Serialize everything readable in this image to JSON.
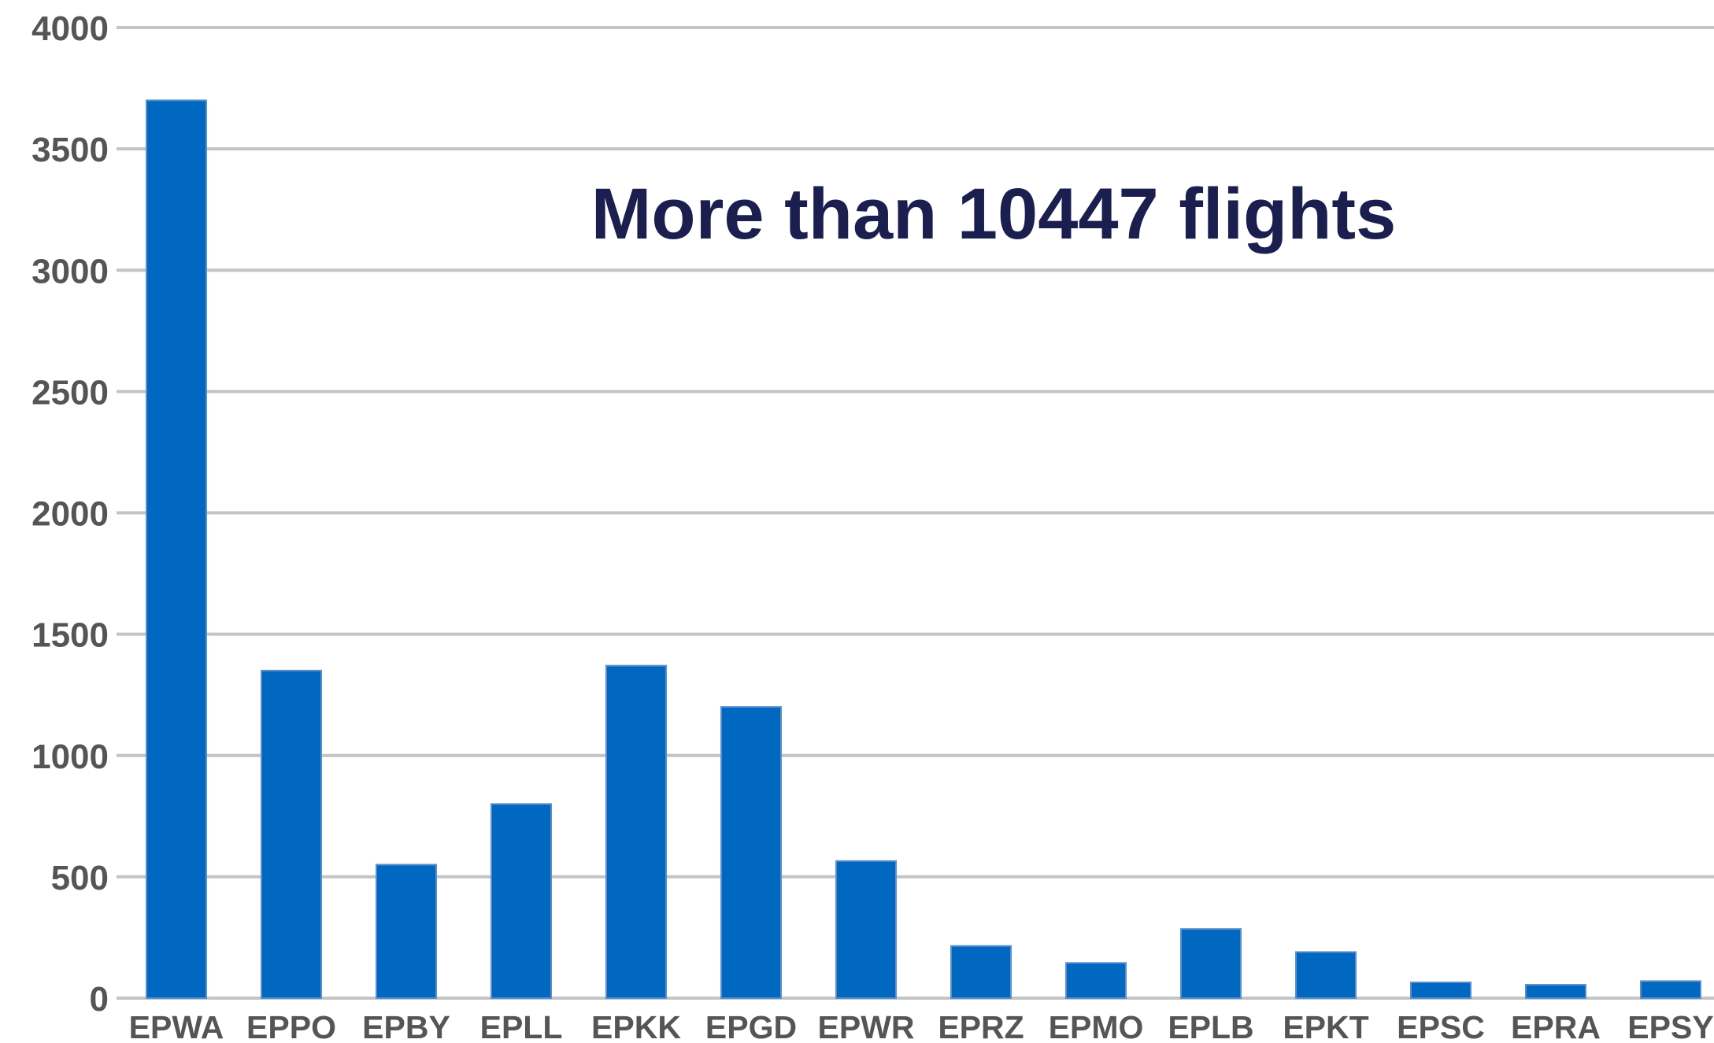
{
  "chart_data": {
    "type": "bar",
    "categories": [
      "EPWA",
      "EPPO",
      "EPBY",
      "EPLL",
      "EPKK",
      "EPGD",
      "EPWR",
      "EPRZ",
      "EPMO",
      "EPLB",
      "EPKT",
      "EPSC",
      "EPRA",
      "EPSY"
    ],
    "values": [
      3700,
      1350,
      550,
      800,
      1370,
      1200,
      565,
      215,
      145,
      285,
      190,
      65,
      55,
      70
    ],
    "ylim": [
      0,
      4000
    ],
    "yticks": [
      0,
      500,
      1000,
      1500,
      2000,
      2500,
      3000,
      3500,
      4000
    ],
    "annotation": "More than 10447 flights",
    "grid": true,
    "legend": "none",
    "bar_color": "#0068c0"
  }
}
